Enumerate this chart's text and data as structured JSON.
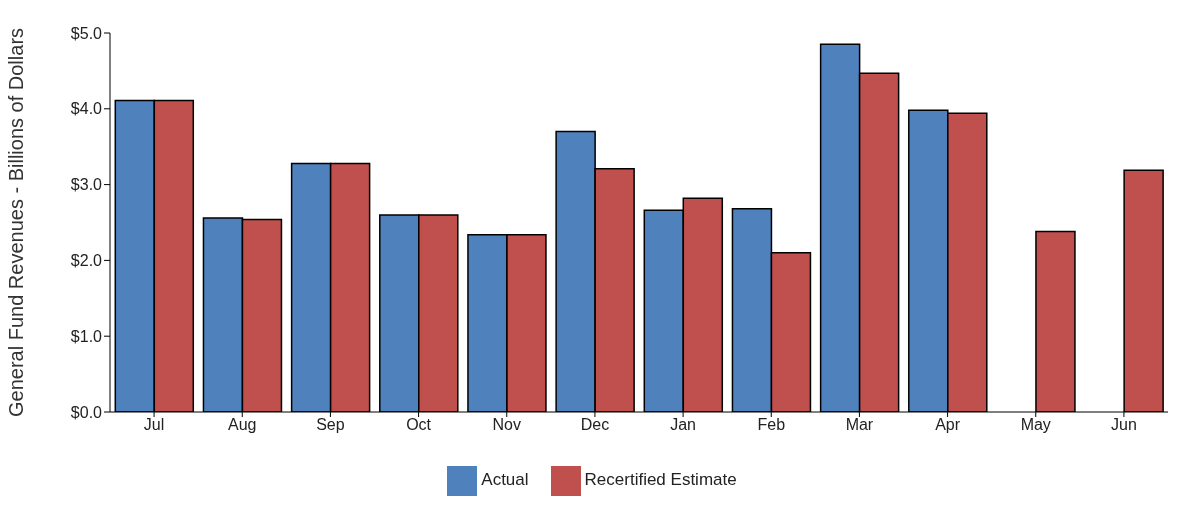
{
  "chart_data": {
    "type": "bar",
    "ylabel": "General Fund Revenues - Billions of Dollars",
    "categories": [
      "Jul",
      "Aug",
      "Sep",
      "Oct",
      "Nov",
      "Dec",
      "Jan",
      "Feb",
      "Mar",
      "Apr",
      "May",
      "Jun"
    ],
    "series": [
      {
        "name": "Actual",
        "color": "#4f81bd",
        "values": [
          4.11,
          2.56,
          3.28,
          2.6,
          2.34,
          3.7,
          2.66,
          2.68,
          4.85,
          3.98,
          null,
          null
        ]
      },
      {
        "name": "Recertified Estimate",
        "color": "#c0504d",
        "values": [
          4.11,
          2.54,
          3.28,
          2.6,
          2.34,
          3.21,
          2.82,
          2.1,
          4.47,
          3.94,
          2.38,
          3.19
        ]
      }
    ],
    "ylim": [
      0,
      5
    ],
    "yticks": [
      {
        "value": 0,
        "label": "$0.0"
      },
      {
        "value": 1,
        "label": "$1.0"
      },
      {
        "value": 2,
        "label": "$2.0"
      },
      {
        "value": 3,
        "label": "$3.0"
      },
      {
        "value": 4,
        "label": "$4.0"
      },
      {
        "value": 5,
        "label": "$5.0"
      }
    ],
    "grid": false,
    "legend": "bottom"
  }
}
